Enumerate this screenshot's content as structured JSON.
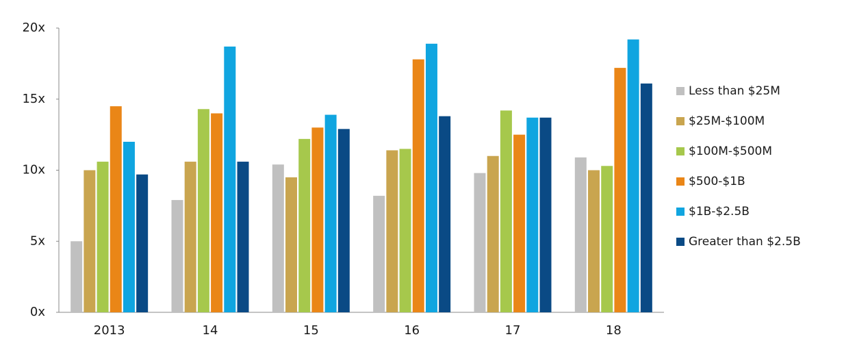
{
  "chart_data": {
    "type": "bar",
    "categories": [
      "2013",
      "14",
      "15",
      "16",
      "17",
      "18"
    ],
    "series": [
      {
        "name": "Less than $25M",
        "color": "#c0c0c0",
        "values": [
          5.0,
          7.9,
          10.4,
          8.2,
          9.8,
          10.9
        ]
      },
      {
        "name": "$25M-$100M",
        "color": "#c9a54f",
        "values": [
          10.0,
          10.6,
          9.5,
          11.4,
          11.0,
          10.0
        ]
      },
      {
        "name": "$100M-$500M",
        "color": "#a6c84c",
        "values": [
          10.6,
          14.3,
          12.2,
          11.5,
          14.2,
          10.3
        ]
      },
      {
        "name": "$500-$1B",
        "color": "#ea8617",
        "values": [
          14.5,
          14.0,
          13.0,
          17.8,
          12.5,
          17.2
        ]
      },
      {
        "name": "$1B-$2.5B",
        "color": "#10a5e0",
        "values": [
          12.0,
          18.7,
          13.9,
          18.9,
          13.7,
          19.2
        ]
      },
      {
        "name": "Greater than $2.5B",
        "color": "#0a4a85",
        "values": [
          9.7,
          10.6,
          12.9,
          13.8,
          13.7,
          16.1
        ]
      }
    ],
    "ylim": [
      0,
      20
    ],
    "yticks": [
      {
        "value": 0,
        "label": "0x"
      },
      {
        "value": 5,
        "label": "5x"
      },
      {
        "value": 10,
        "label": "10x"
      },
      {
        "value": 15,
        "label": "15x"
      },
      {
        "value": 20,
        "label": "20x"
      }
    ],
    "grid": false,
    "legend": "right"
  }
}
